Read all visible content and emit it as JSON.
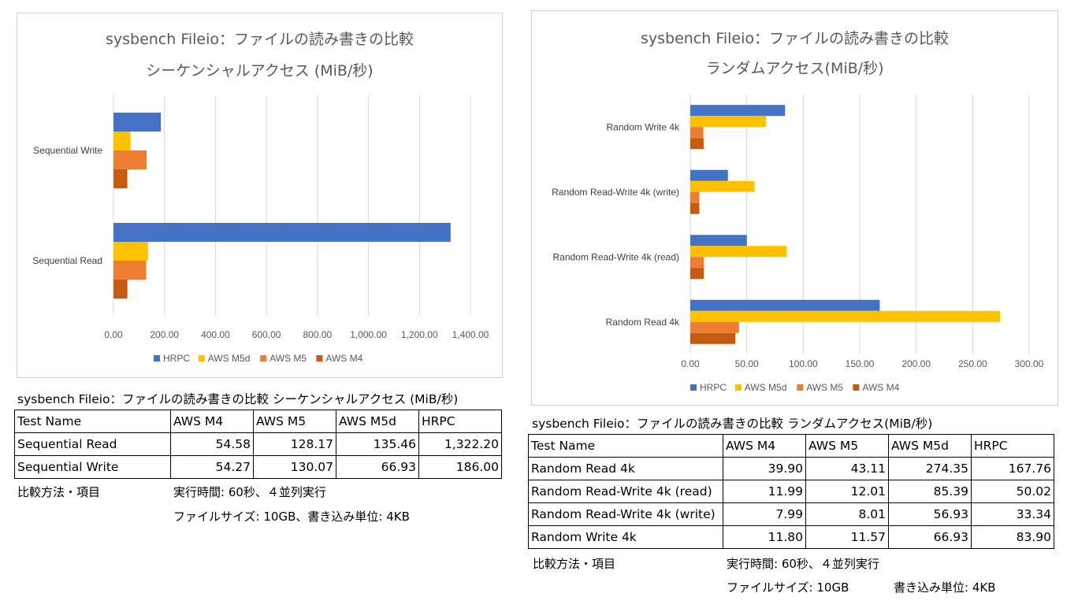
{
  "seq": {
    "chart_title_line1": "sysbench Fileio：ファイルの読み書きの比較",
    "chart_title_line2": "シーケンシャルアクセス (MiB/秒)",
    "table_title": "sysbench Fileio：ファイルの読み書きの比較  シーケンシャルアクセス (MiB/秒)",
    "headers": [
      "Test Name",
      "AWS M4",
      "AWS M5",
      "AWS M5d",
      "HRPC"
    ],
    "rows": [
      [
        "Sequential Read",
        "54.58",
        "128.17",
        "135.46",
        "1,322.20"
      ],
      [
        "Sequential Write",
        "54.27",
        "130.07",
        "66.93",
        "186.00"
      ]
    ],
    "method_label": "比較方法・項目",
    "method_line1": "実行時間: 60秒、４並列実行",
    "method_line2": "ファイルサイズ: 10GB、書き込み単位: 4KB"
  },
  "rand": {
    "chart_title_line1": "sysbench Fileio：ファイルの読み書きの比較",
    "chart_title_line2": "ランダムアクセス(MiB/秒)",
    "table_title": "sysbench Fileio：ファイルの読み書きの比較  ランダムアクセス(MiB/秒)",
    "headers": [
      "Test Name",
      "AWS M4",
      "AWS M5",
      "AWS M5d",
      "HRPC"
    ],
    "rows": [
      [
        "Random Read 4k",
        "39.90",
        "43.11",
        "274.35",
        "167.76"
      ],
      [
        "Random Read-Write 4k (read)",
        "11.99",
        "12.01",
        "85.39",
        "50.02"
      ],
      [
        "Random Read-Write 4k (write)",
        "7.99",
        "8.01",
        "56.93",
        "33.34"
      ],
      [
        "Random Write 4k",
        "11.80",
        "11.57",
        "66.93",
        "83.90"
      ]
    ],
    "method_label": "比較方法・項目",
    "method_line1": "実行時間: 60秒、４並列実行",
    "method_line2a": "ファイルサイズ: 10GB",
    "method_line2b": "書き込み単位: 4KB"
  },
  "chart_data": [
    {
      "type": "bar",
      "orientation": "horizontal",
      "title": "sysbench Fileio：ファイルの読み書きの比較 シーケンシャルアクセス (MiB/秒)",
      "categories": [
        "Sequential Write",
        "Sequential Read"
      ],
      "series": [
        {
          "name": "HRPC",
          "values": [
            186.0,
            1322.2
          ],
          "color": "#4472C4"
        },
        {
          "name": "AWS M5d",
          "values": [
            66.93,
            135.46
          ],
          "color": "#FFC000"
        },
        {
          "name": "AWS M5",
          "values": [
            130.07,
            128.17
          ],
          "color": "#ED7D31"
        },
        {
          "name": "AWS M4",
          "values": [
            54.27,
            54.58
          ],
          "color": "#C55A11"
        }
      ],
      "xlim": [
        0,
        1400
      ],
      "ticks": [
        0,
        200,
        400,
        600,
        800,
        1000,
        1200,
        1400
      ],
      "tick_labels": [
        "0.00",
        "200.00",
        "400.00",
        "600.00",
        "800.00",
        "1,000.00",
        "1,200.00",
        "1,400.00"
      ],
      "grid": true,
      "legend_position": "bottom"
    },
    {
      "type": "bar",
      "orientation": "horizontal",
      "title": "sysbench Fileio：ファイルの読み書きの比較 ランダムアクセス(MiB/秒)",
      "categories": [
        "Random Write 4k",
        "Random Read-Write 4k (write)",
        "Random Read-Write 4k (read)",
        "Random Read 4k"
      ],
      "series": [
        {
          "name": "HRPC",
          "values": [
            83.9,
            33.34,
            50.02,
            167.76
          ],
          "color": "#4472C4"
        },
        {
          "name": "AWS M5d",
          "values": [
            66.93,
            56.93,
            85.39,
            274.35
          ],
          "color": "#FFC000"
        },
        {
          "name": "AWS M5",
          "values": [
            11.57,
            8.01,
            12.01,
            43.11
          ],
          "color": "#ED7D31"
        },
        {
          "name": "AWS M4",
          "values": [
            11.8,
            7.99,
            11.99,
            39.9
          ],
          "color": "#C55A11"
        }
      ],
      "xlim": [
        0,
        300
      ],
      "ticks": [
        0,
        50,
        100,
        150,
        200,
        250,
        300
      ],
      "tick_labels": [
        "0.00",
        "50.00",
        "100.00",
        "150.00",
        "200.00",
        "250.00",
        "300.00"
      ],
      "grid": true,
      "legend_position": "bottom"
    }
  ]
}
